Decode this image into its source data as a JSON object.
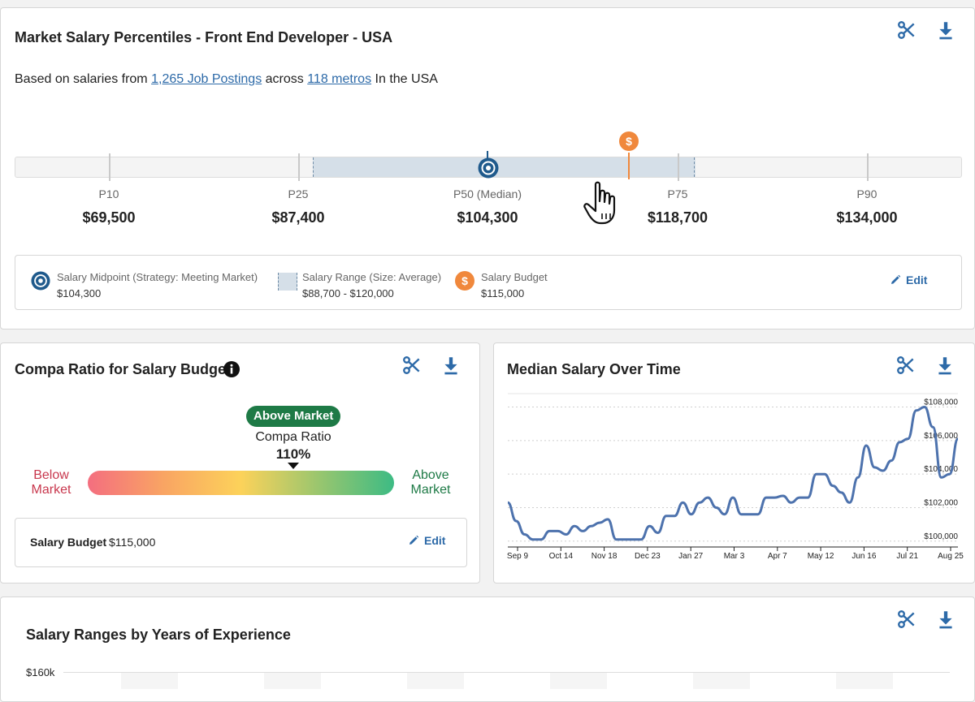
{
  "percentiles_card": {
    "title": "Market Salary Percentiles - Front End Developer - USA",
    "subtitle_prefix": "Based on salaries from",
    "job_postings_link": "1,265 Job Postings",
    "subtitle_mid": "across",
    "metros_link": "118 metros",
    "subtitle_suffix": "In the USA",
    "percentiles": [
      {
        "label": "P10",
        "value": "$69,500"
      },
      {
        "label": "P25",
        "value": "$87,400"
      },
      {
        "label": "P50 (Median)",
        "value": "$104,300"
      },
      {
        "label": "P75",
        "value": "$118,700"
      },
      {
        "label": "P90",
        "value": "$134,000"
      }
    ],
    "budget_marker_icon": "dollar-icon",
    "midpoint_marker_icon": "target-icon",
    "legend": {
      "midpoint_title": "Salary Midpoint (Strategy: Meeting Market)",
      "midpoint_value": "$104,300",
      "range_title": "Salary Range (Size: Average)",
      "range_value": "$88,700 - $120,000",
      "budget_title": "Salary Budget",
      "budget_value": "$115,000",
      "edit_label": "Edit"
    }
  },
  "compa_card": {
    "title": "Compa Ratio for Salary Budget",
    "badge": "Above Market",
    "compa_label": "Compa Ratio",
    "compa_value": "110%",
    "compa_fraction": 0.67,
    "left_label": "Below\nMarket",
    "right_label": "Above\nMarket",
    "budget_label": "Salary Budget",
    "budget_value": "$115,000",
    "edit_label": "Edit"
  },
  "median_card": {
    "title": "Median Salary Over Time"
  },
  "chart_data": {
    "type": "line",
    "title": "Median Salary Over Time",
    "x_tick_labels": [
      "Sep 9",
      "Oct 14",
      "Nov 18",
      "Dec 23",
      "Jan 27",
      "Mar 3",
      "Apr 7",
      "May 12",
      "Jun 16",
      "Jul 21",
      "Aug 25"
    ],
    "y_tick_labels": [
      "$100,000",
      "$102,000",
      "$104,000",
      "$106,000",
      "$108,000"
    ],
    "ylim": [
      99700,
      108800
    ],
    "grid": true,
    "series": [
      {
        "values": [
          102300,
          101200,
          100400,
          100100,
          100100,
          100600,
          100600,
          100400,
          100900,
          100600,
          100900,
          101100,
          101300,
          100100,
          100100,
          100100,
          100100,
          100900,
          100500,
          101500,
          101500,
          102300,
          101600,
          102300,
          102600,
          102000,
          101600,
          102600,
          101600,
          101600,
          101600,
          102600,
          102600,
          102700,
          102300,
          102600,
          102600,
          104000,
          104000,
          103300,
          102900,
          102300,
          103800,
          105700,
          104400,
          104200,
          104800,
          105900,
          106100,
          107800,
          108000,
          106800,
          103800,
          104000,
          106100
        ]
      }
    ]
  },
  "ranges_card": {
    "title": "Salary Ranges by Years of Experience",
    "y_top_label": "$160k"
  },
  "colors": {
    "accent": "#2d6aa8",
    "midpoint": "#1f5a8c",
    "budget": "#f0883c",
    "range_fill": "#d5dfe8",
    "above_market": "#1e7a46",
    "below_market": "#c8374d",
    "line": "#4d72ad"
  },
  "icons": {
    "clip": "scissors-icon",
    "download": "download-icon",
    "edit": "pencil-icon",
    "info": "info-icon",
    "cursor": "hand-pointer-icon"
  }
}
